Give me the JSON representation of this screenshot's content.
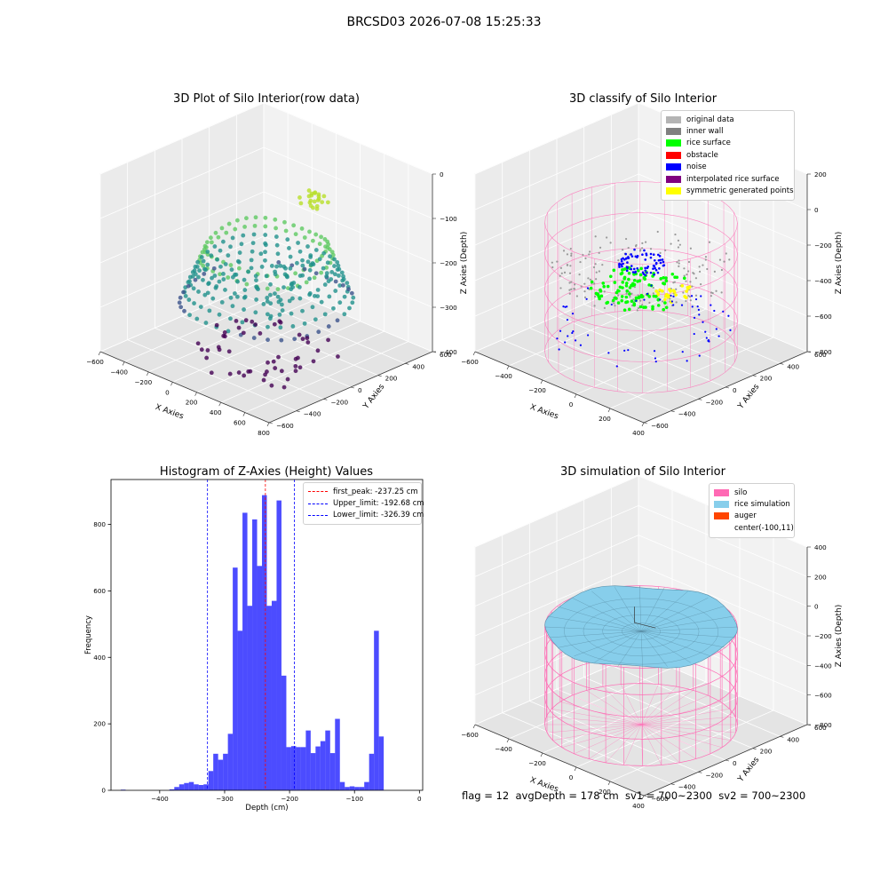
{
  "suptitle": "BRCSD03 2026-07-08 15:25:33",
  "status_text": "flag = 12  avgDepth = 178 cm  sv1 = 700~2300  sv2 = 700~2300",
  "panels": {
    "raw": {
      "title": "3D Plot of Silo Interior(row data)",
      "xlabel": "X Axies",
      "ylabel": "Y Axies",
      "zlabel": "Z Axies (Depth)",
      "xticks": [
        "−600",
        "−400",
        "−200",
        "0",
        "200",
        "400",
        "600",
        "800"
      ],
      "yticks": [
        "600",
        "400",
        "200",
        "0",
        "−200",
        "−400",
        "−600"
      ],
      "zticks": [
        "0",
        "−100",
        "−200",
        "−300",
        "−400"
      ]
    },
    "classify": {
      "title": "3D classify of Silo Interior",
      "xlabel": "X Axies",
      "ylabel": "Y Axies",
      "zlabel": "Z Axies (Depth)",
      "xticks": [
        "−600",
        "−400",
        "−200",
        "0",
        "200",
        "400"
      ],
      "yticks": [
        "600",
        "400",
        "200",
        "0",
        "−200",
        "−400",
        "−600"
      ],
      "zticks": [
        "200",
        "0",
        "−200",
        "−400",
        "−600",
        "−800"
      ],
      "legend": [
        {
          "label": "original data",
          "color": "#b4b4b4"
        },
        {
          "label": "inner wall",
          "color": "#808080"
        },
        {
          "label": "rice surface",
          "color": "#00ff00"
        },
        {
          "label": "obstacle",
          "color": "#ff0000"
        },
        {
          "label": "noise",
          "color": "#0000ff"
        },
        {
          "label": "interpolated rice surface",
          "color": "#800080"
        },
        {
          "label": "symmetric generated points",
          "color": "#ffff00"
        }
      ]
    },
    "sim": {
      "title": "3D simulation of Silo Interior",
      "xlabel": "X Axies",
      "ylabel": "Y Axies",
      "zlabel": "Z Axies (Depth)",
      "xticks": [
        "−600",
        "−400",
        "−200",
        "0",
        "200",
        "400"
      ],
      "yticks": [
        "600",
        "400",
        "200",
        "0",
        "−200",
        "−400",
        "−600"
      ],
      "zticks": [
        "400",
        "200",
        "0",
        "−200",
        "−400",
        "−600",
        "−800"
      ],
      "legend": [
        {
          "label": "silo",
          "color": "#ff69b4"
        },
        {
          "label": "rice simulation",
          "color": "#87ceeb"
        },
        {
          "label": "auger",
          "color": "#ff4500"
        },
        {
          "label": "center(-100,11)",
          "color": ""
        }
      ]
    }
  },
  "chart_data": {
    "type": "bar",
    "title": "Histogram of Z-Axies (Height) Values",
    "xlabel": "Depth (cm)",
    "ylabel": "Frequency",
    "xlim": [
      -475,
      5
    ],
    "ylim": [
      0,
      935
    ],
    "bar_color": "#0000ff",
    "bin_width": 7.5,
    "bins": [
      [
        -460,
        2
      ],
      [
        -385,
        3
      ],
      [
        -377.5,
        10
      ],
      [
        -370,
        18
      ],
      [
        -362.5,
        22
      ],
      [
        -355,
        25
      ],
      [
        -347.5,
        18
      ],
      [
        -340,
        16
      ],
      [
        -332.5,
        18
      ],
      [
        -325,
        58
      ],
      [
        -317.5,
        110
      ],
      [
        -310,
        92
      ],
      [
        -302.5,
        110
      ],
      [
        -295,
        170
      ],
      [
        -287.5,
        670
      ],
      [
        -280,
        480
      ],
      [
        -272.5,
        835
      ],
      [
        -265,
        555
      ],
      [
        -257.5,
        815
      ],
      [
        -250,
        675
      ],
      [
        -242.5,
        888
      ],
      [
        -235,
        555
      ],
      [
        -227.5,
        570
      ],
      [
        -220,
        872
      ],
      [
        -212.5,
        345
      ],
      [
        -205,
        130
      ],
      [
        -197.5,
        133
      ],
      [
        -190,
        130
      ],
      [
        -182.5,
        130
      ],
      [
        -175,
        180
      ],
      [
        -167.5,
        112
      ],
      [
        -160,
        132
      ],
      [
        -152.5,
        148
      ],
      [
        -145,
        180
      ],
      [
        -137.5,
        112
      ],
      [
        -130,
        215
      ],
      [
        -122.5,
        25
      ],
      [
        -115,
        10
      ],
      [
        -107.5,
        12
      ],
      [
        -100,
        10
      ],
      [
        -92.5,
        10
      ],
      [
        -85,
        25
      ],
      [
        -77.5,
        110
      ],
      [
        -70,
        480
      ],
      [
        -62.5,
        162
      ]
    ],
    "xticks": [
      "−400",
      "−300",
      "−200",
      "−100",
      "0"
    ],
    "yticks": [
      "0",
      "200",
      "400",
      "600",
      "800"
    ],
    "lines": [
      {
        "label": "first_peak: -237.25 cm",
        "x": -237.25,
        "color": "#ff0000"
      },
      {
        "label": "Upper_limit: -192.68 cm",
        "x": -192.68,
        "color": "#0000ff"
      },
      {
        "label": "Lower_limit: -326.39 cm",
        "x": -326.39,
        "color": "#0000ff"
      }
    ]
  }
}
